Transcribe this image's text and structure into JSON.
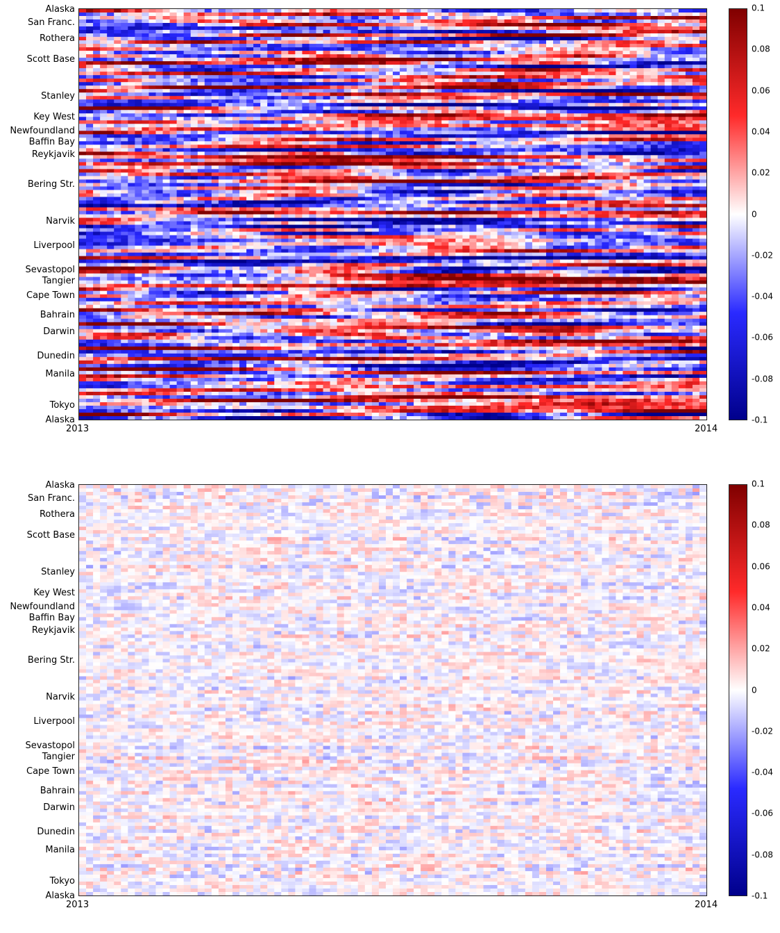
{
  "chart_data": [
    {
      "type": "heatmap",
      "x_start_label": "2013",
      "x_end_label": "2014",
      "y_labels": [
        {
          "label": "Alaska",
          "pos": 0.0
        },
        {
          "label": "San Franc.",
          "pos": 0.035
        },
        {
          "label": "Rothera",
          "pos": 0.075
        },
        {
          "label": "Scott Base",
          "pos": 0.125
        },
        {
          "label": "Stanley",
          "pos": 0.215
        },
        {
          "label": "Key West",
          "pos": 0.265
        },
        {
          "label": "Newfoundland",
          "pos": 0.298
        },
        {
          "label": "Baffin Bay",
          "pos": 0.325
        },
        {
          "label": "Reykjavik",
          "pos": 0.355
        },
        {
          "label": "Bering Str.",
          "pos": 0.428
        },
        {
          "label": "Narvik",
          "pos": 0.518
        },
        {
          "label": "Liverpool",
          "pos": 0.577
        },
        {
          "label": "Sevastopol",
          "pos": 0.636
        },
        {
          "label": "Tangier",
          "pos": 0.662
        },
        {
          "label": "Cape Town",
          "pos": 0.698
        },
        {
          "label": "Bahrain",
          "pos": 0.745
        },
        {
          "label": "Darwin",
          "pos": 0.785
        },
        {
          "label": "Dunedin",
          "pos": 0.845
        },
        {
          "label": "Manila",
          "pos": 0.888
        },
        {
          "label": "Tokyo",
          "pos": 0.965
        },
        {
          "label": "Alaska",
          "pos": 1.0
        }
      ],
      "colorbar": {
        "min": -0.1,
        "max": 0.1,
        "ticks": [
          "0.1",
          "0.08",
          "0.06",
          "0.04",
          "0.02",
          "0",
          "-0.02",
          "-0.04",
          "-0.06",
          "-0.08",
          "-0.1"
        ]
      },
      "colormap": {
        "low": "#00008b",
        "mid": "#ffffff",
        "high": "#800000"
      },
      "amplitude": 1.0
    },
    {
      "type": "heatmap",
      "x_start_label": "2013",
      "x_end_label": "2014",
      "y_labels": [
        {
          "label": "Alaska",
          "pos": 0.0
        },
        {
          "label": "San Franc.",
          "pos": 0.035
        },
        {
          "label": "Rothera",
          "pos": 0.075
        },
        {
          "label": "Scott Base",
          "pos": 0.125
        },
        {
          "label": "Stanley",
          "pos": 0.215
        },
        {
          "label": "Key West",
          "pos": 0.265
        },
        {
          "label": "Newfoundland",
          "pos": 0.298
        },
        {
          "label": "Baffin Bay",
          "pos": 0.325
        },
        {
          "label": "Reykjavik",
          "pos": 0.355
        },
        {
          "label": "Bering Str.",
          "pos": 0.428
        },
        {
          "label": "Narvik",
          "pos": 0.518
        },
        {
          "label": "Liverpool",
          "pos": 0.577
        },
        {
          "label": "Sevastopol",
          "pos": 0.636
        },
        {
          "label": "Tangier",
          "pos": 0.662
        },
        {
          "label": "Cape Town",
          "pos": 0.698
        },
        {
          "label": "Bahrain",
          "pos": 0.745
        },
        {
          "label": "Darwin",
          "pos": 0.785
        },
        {
          "label": "Dunedin",
          "pos": 0.845
        },
        {
          "label": "Manila",
          "pos": 0.888
        },
        {
          "label": "Tokyo",
          "pos": 0.965
        },
        {
          "label": "Alaska",
          "pos": 1.0
        }
      ],
      "colorbar": {
        "min": -0.1,
        "max": 0.1,
        "ticks": [
          "0.1",
          "0.08",
          "0.06",
          "0.04",
          "0.02",
          "0",
          "-0.02",
          "-0.04",
          "-0.06",
          "-0.08",
          "-0.1"
        ]
      },
      "colormap": {
        "low": "#00008b",
        "mid": "#ffffff",
        "high": "#800000"
      },
      "amplitude": 0.3
    }
  ]
}
